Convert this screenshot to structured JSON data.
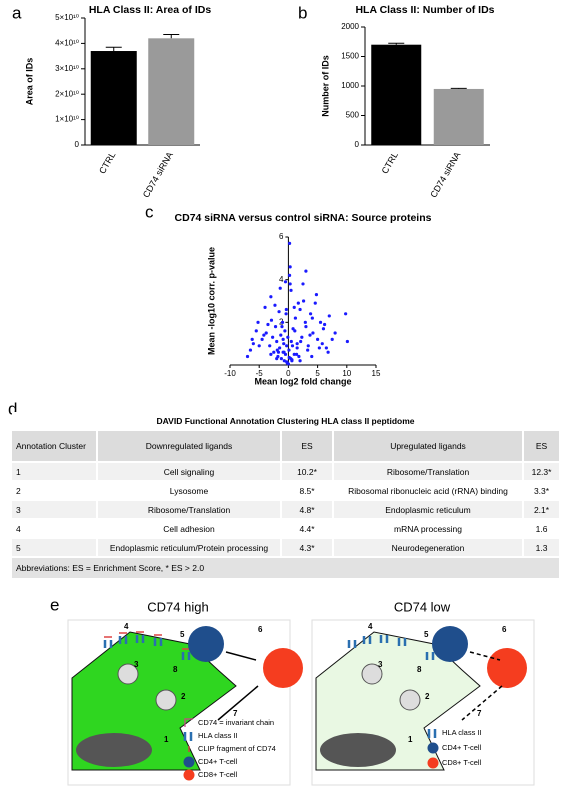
{
  "panel_labels": [
    "a",
    "b",
    "c",
    "d",
    "e"
  ],
  "chart_data": [
    {
      "type": "bar",
      "title": "HLA Class II: Area of IDs",
      "y_label": "Area of IDs",
      "categories": [
        "CTRL",
        "CD74 siRNA"
      ],
      "values": [
        37000000000,
        42000000000
      ],
      "errors": [
        1500000000,
        1500000000
      ],
      "colors": [
        "#000000",
        "#9a9a9a"
      ],
      "ylim": [
        0,
        50000000000
      ],
      "yticks": [
        0,
        {
          "value": 10000000000,
          "label": "1×10¹⁰"
        },
        {
          "value": 20000000000,
          "label": "2×10¹⁰"
        },
        {
          "value": 30000000000,
          "label": "3×10¹⁰"
        },
        {
          "value": 40000000000,
          "label": "4×10¹⁰"
        },
        {
          "value": 50000000000,
          "label": "5×10¹⁰"
        }
      ]
    },
    {
      "type": "bar",
      "title": "HLA Class II: Number of IDs",
      "y_label": "Number of IDs",
      "categories": [
        "CTRL",
        "CD74 siRNA"
      ],
      "values": [
        1700,
        950
      ],
      "errors": [
        25,
        10
      ],
      "colors": [
        "#000000",
        "#9a9a9a"
      ],
      "ylim": [
        0,
        2000
      ],
      "yticks": [
        0,
        500,
        1000,
        1500,
        2000
      ]
    },
    {
      "type": "scatter",
      "title": "CD74 siRNA versus control siRNA: Source proteins",
      "x_label": "Mean log2 fold change",
      "y_label": "Mean -log10 corr. p-value",
      "color": "#1a1aff",
      "xlim": [
        -10,
        15
      ],
      "xticks": [
        -10,
        -5,
        0,
        5,
        10,
        15
      ],
      "ylim": [
        0,
        6
      ],
      "yticks": [
        2,
        4,
        6
      ],
      "x": [
        -4.5,
        -3.8,
        -3.2,
        -2.9,
        -2.5,
        -2.2,
        -2,
        -1.8,
        -1.6,
        -1.5,
        -1.3,
        -1.2,
        -1,
        -0.9,
        -0.8,
        -0.7,
        -0.6,
        -0.5,
        -0.4,
        -0.3,
        -0.2,
        -0.1,
        0,
        0.1,
        0.2,
        0.3,
        0.4,
        0.5,
        0.6,
        0.8,
        1,
        1.2,
        1.5,
        1.8,
        2,
        2.3,
        2.6,
        3,
        3.4,
        3.8,
        4.2,
        4.6,
        5,
        5.5,
        6,
        6.5,
        7,
        8,
        -5,
        -5.5,
        -6,
        -6.5,
        -7,
        -4,
        -3.5,
        -3,
        -2.7,
        -2.3,
        -1.9,
        -1.4,
        -1.1,
        -0.75,
        -0.35,
        0.15,
        0.45,
        0.7,
        1.1,
        1.4,
        1.7,
        2.1,
        2.5,
        2.9,
        3.3,
        3.7,
        4.1,
        4.8,
        5.3,
        6.2,
        7.5,
        9.8,
        10.1,
        0.2,
        0.3,
        -0.5,
        3,
        2,
        1.5,
        -2,
        -3,
        -4.2,
        -1.7,
        -0.9,
        1,
        4,
        -5.2,
        -6.2,
        5.8,
        6.8,
        -0.3,
        0.6
      ],
      "y": [
        1.2,
        1.5,
        0.9,
        2.1,
        0.6,
        1.8,
        1.1,
        0.4,
        2.5,
        0.8,
        1.4,
        0.3,
        2.0,
        0.6,
        1.0,
        0.2,
        1.6,
        0.5,
        2.4,
        0.9,
        0.1,
        1.3,
        0.05,
        0.7,
        5.7,
        4.6,
        0.3,
        1.1,
        0.2,
        1.7,
        0.5,
        2.2,
        1.0,
        0.4,
        2.6,
        1.3,
        3.0,
        1.8,
        0.9,
        2.4,
        1.5,
        2.9,
        1.2,
        2.0,
        1.7,
        0.8,
        2.3,
        1.5,
        0.9,
        1.6,
        1.0,
        0.7,
        0.4,
        2.7,
        1.9,
        3.2,
        1.3,
        2.8,
        0.7,
        3.6,
        1.8,
        0.6,
        2.6,
        0.35,
        3.5,
        0.9,
        1.6,
        0.5,
        2.9,
        1.1,
        3.8,
        2.0,
        0.7,
        1.4,
        2.2,
        3.3,
        0.8,
        1.9,
        1.2,
        2.4,
        1.1,
        4.2,
        3.8,
        3.9,
        4.4,
        0.2,
        0.8,
        0.3,
        0.5,
        1.4,
        0.6,
        1.2,
        2.7,
        0.4,
        2.0,
        1.2,
        1.0,
        0.6,
        0.15,
        0.25
      ]
    }
  ],
  "table": {
    "title": "DAVID Functional Annotation Clustering HLA  class II peptidome",
    "header": [
      "Annotation Cluster",
      "Downregulated ligands",
      "ES",
      "Upregulated ligands",
      "ES"
    ],
    "rows": [
      [
        "1",
        "Cell signaling",
        "10.2*",
        "Ribosome/Translation",
        "12.3*"
      ],
      [
        "2",
        "Lysosome",
        "8.5*",
        "Ribosomal ribonucleic acid (rRNA) binding",
        "3.3*"
      ],
      [
        "3",
        "Ribosome/Translation",
        "4.8*",
        "Endoplasmic reticulum",
        "2.1*"
      ],
      [
        "4",
        "Cell adhesion",
        "4.4*",
        "mRNA processing",
        "1.6"
      ],
      [
        "5",
        "Endoplasmic reticulum/Protein processing",
        "4.3*",
        "Neurodegeneration",
        "1.3"
      ]
    ],
    "footer": "Abbreviations: ES = Enrichment Score, * ES > 2.0"
  },
  "diagram": {
    "panels": [
      {
        "title": "CD74 high",
        "numbers": [
          "1",
          "2",
          "3",
          "4",
          "5",
          "6",
          "7",
          "8"
        ],
        "legend": [
          "CD74 = invariant chain",
          "HLA class II",
          "CLIP fragment of CD74",
          "CD4+ T-cell",
          "CD8+ T-cell"
        ]
      },
      {
        "title": "CD74 low",
        "numbers": [
          "1",
          "2",
          "3",
          "4",
          "5",
          "6",
          "7",
          "8"
        ],
        "legend": [
          "HLA class II",
          "CD4+ T-cell",
          "CD8+ T-cell"
        ]
      }
    ]
  }
}
